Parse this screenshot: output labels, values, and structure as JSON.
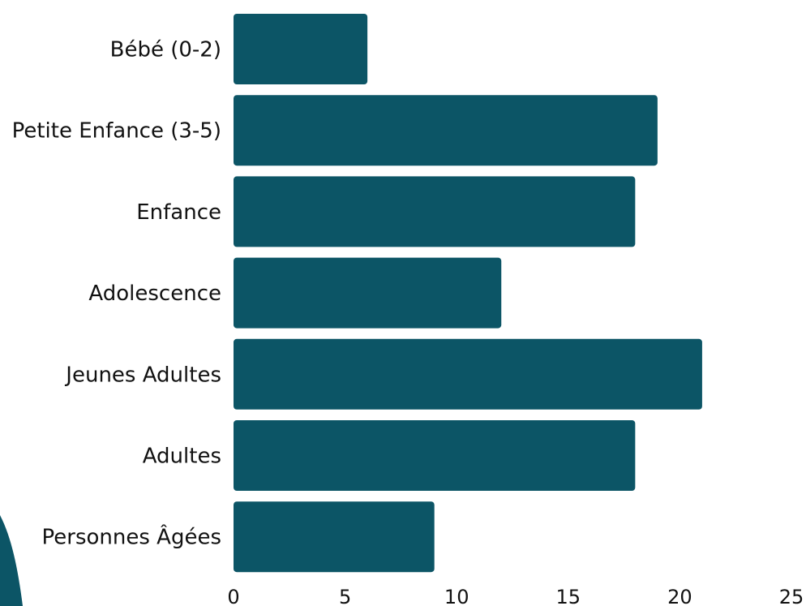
{
  "chart_data": {
    "type": "bar",
    "orientation": "horizontal",
    "categories": [
      "Bébé (0-2)",
      "Petite Enfance (3-5)",
      "Enfance",
      "Adolescence",
      "Jeunes Adultes",
      "Adultes",
      "Personnes Âgées"
    ],
    "values": [
      6,
      19,
      18,
      12,
      21,
      18,
      9
    ],
    "xlim": [
      0,
      25
    ],
    "xticks": [
      0,
      5,
      10,
      15,
      20,
      25
    ],
    "grid": false,
    "legend": "none",
    "colors": {
      "bar": "#0c5566",
      "decor": "#0c5566"
    }
  }
}
